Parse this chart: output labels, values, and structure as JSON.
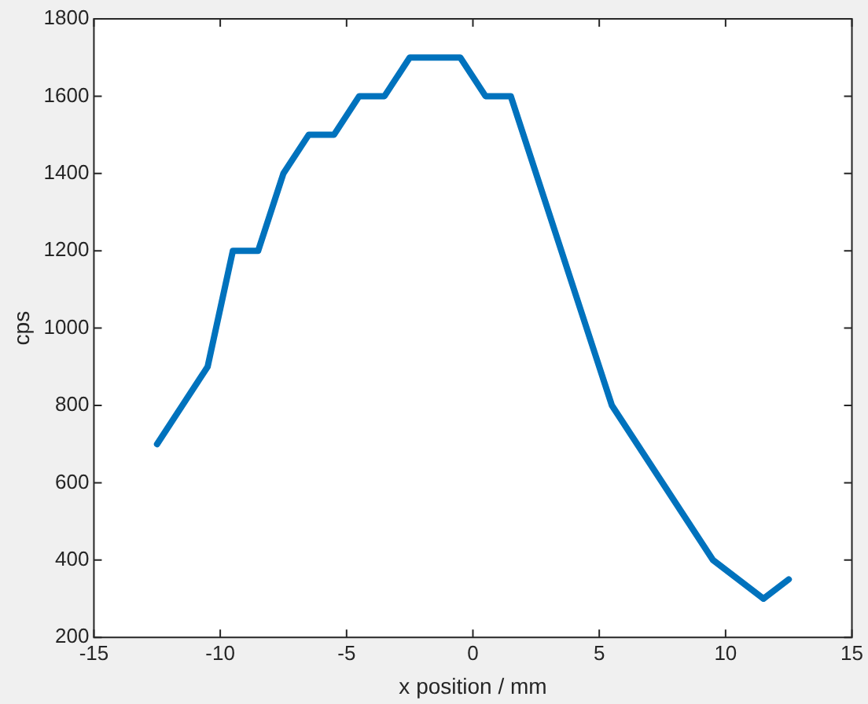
{
  "chart_data": {
    "type": "line",
    "xlabel": "x position / mm",
    "ylabel": "cps",
    "x": [
      -12.5,
      -10.5,
      -9.5,
      -8.5,
      -7.5,
      -6.5,
      -5.5,
      -4.5,
      -3.5,
      -2.5,
      -0.5,
      0.5,
      1.5,
      5.5,
      9.5,
      11.5,
      12.5
    ],
    "series": [
      {
        "color": "#0072bd",
        "values": [
          700,
          900,
          1200,
          1200,
          1400,
          1500,
          1500,
          1600,
          1600,
          1700,
          1700,
          1600,
          1600,
          800,
          400,
          300,
          350
        ]
      }
    ],
    "xlim": [
      -15,
      15
    ],
    "xticks": [
      -15,
      -10,
      -5,
      0,
      5,
      10,
      15
    ],
    "ylim": [
      200,
      1800
    ],
    "yticks": [
      200,
      400,
      600,
      800,
      1000,
      1200,
      1400,
      1600,
      1800
    ],
    "grid": false,
    "legend": false,
    "marker": "none",
    "line_style": "solid"
  }
}
